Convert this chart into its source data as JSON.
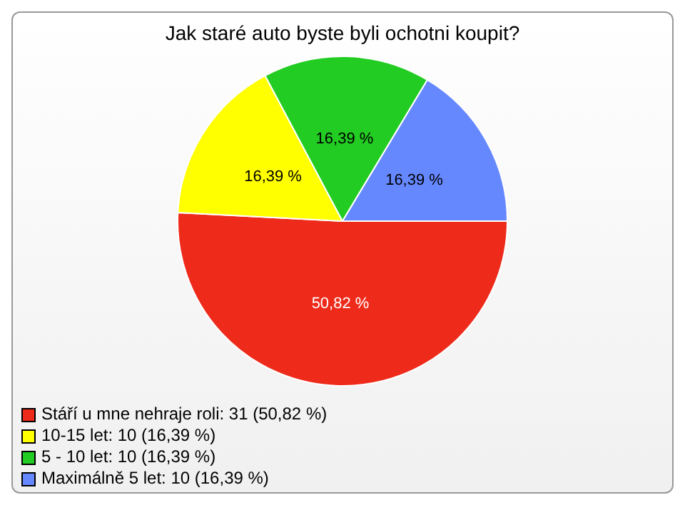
{
  "chart_data": {
    "type": "pie",
    "title": "Jak staré auto byste byli ochotni koupit?",
    "categories": [
      "Stáří u mne nehraje roli: 31 (50,82 %)",
      "10-15 let: 10 (16,39 %)",
      "5 - 10 let: 10 (16,39 %)",
      "Maximálně 5 let: 10 (16,39 %)"
    ],
    "values": [
      50.82,
      16.39,
      16.39,
      16.39
    ],
    "colors": [
      "#ee2a1a",
      "#ffff00",
      "#22cc22",
      "#6688ff"
    ],
    "value_labels": [
      "50,82 %",
      "16,39 %",
      "16,39 %",
      "16,39 %"
    ],
    "legend": "bottom left"
  }
}
